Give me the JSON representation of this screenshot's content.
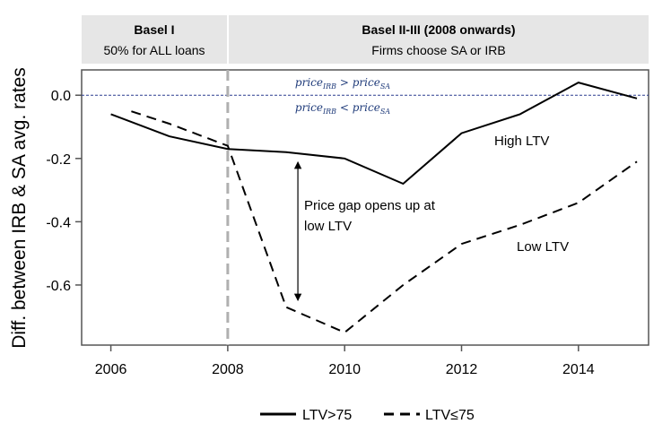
{
  "chart_data": {
    "type": "line",
    "title": "",
    "xlabel": "",
    "ylabel": "Diff. between IRB & SA avg. rates",
    "xlim": [
      2005.5,
      2015.2
    ],
    "ylim": [
      -0.79,
      0.08
    ],
    "xticks": [
      "2006",
      "2008",
      "2010",
      "2012",
      "2014"
    ],
    "yticks": [
      "0.0",
      "-0.2",
      "-0.4",
      "-0.6"
    ],
    "grid": false,
    "legend_position": "bottom",
    "series": [
      {
        "name": "LTV>75",
        "style": "solid",
        "color": "#000000",
        "x": [
          2006,
          2007,
          2008,
          2009,
          2010,
          2011,
          2012,
          2013,
          2014,
          2015
        ],
        "y": [
          -0.06,
          -0.13,
          -0.17,
          -0.18,
          -0.2,
          -0.28,
          -0.12,
          -0.06,
          0.04,
          -0.01
        ]
      },
      {
        "name": "LTV≤75",
        "style": "dashed",
        "color": "#000000",
        "x": [
          2006,
          2007,
          2008,
          2009,
          2010,
          2011,
          2012,
          2013,
          2014,
          2015
        ],
        "y": [
          -0.03,
          -0.09,
          -0.16,
          -0.67,
          -0.75,
          -0.6,
          -0.47,
          -0.41,
          -0.34,
          -0.21
        ]
      }
    ],
    "regions": [
      {
        "title": "Basel I",
        "subtitle": "50% for ALL loans"
      },
      {
        "title": "Basel II-III (2008 onwards)",
        "subtitle": "Firms choose SA or IRB"
      }
    ],
    "vline": {
      "x": 2008,
      "color": "#b0b0b0"
    },
    "hline": {
      "y": 0,
      "color": "#2b3d8f"
    },
    "annotations": {
      "high_ltv": "High LTV",
      "low_ltv": "Low LTV",
      "gap_line1": "Price gap opens up at",
      "gap_line2": "low LTV",
      "above_price": "price",
      "above_sub1": "IRB",
      "above_op": " > price",
      "above_sub2": "SA",
      "below_price": "price",
      "below_sub1": "IRB",
      "below_op": " < price",
      "below_sub2": "SA"
    },
    "gap_arrow": {
      "x": 2009.2,
      "y_top": -0.2,
      "y_bottom": -0.66
    }
  }
}
